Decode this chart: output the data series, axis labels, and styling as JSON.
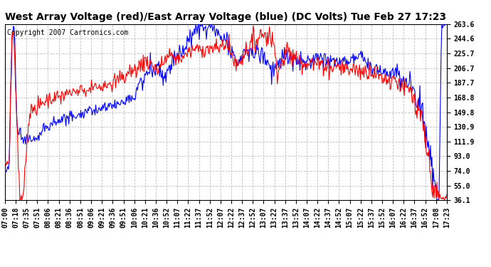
{
  "title": "West Array Voltage (red)/East Array Voltage (blue) (DC Volts) Tue Feb 27 17:23",
  "copyright_text": "Copyright 2007 Cartronics.com",
  "yticks": [
    36.1,
    55.0,
    74.0,
    93.0,
    111.9,
    130.9,
    149.8,
    168.8,
    187.7,
    206.7,
    225.7,
    244.6,
    263.6
  ],
  "xtick_labels": [
    "07:00",
    "07:18",
    "07:35",
    "07:51",
    "08:06",
    "08:21",
    "08:36",
    "08:51",
    "09:06",
    "09:21",
    "09:36",
    "09:51",
    "10:06",
    "10:21",
    "10:36",
    "10:52",
    "11:07",
    "11:22",
    "11:37",
    "11:52",
    "12:07",
    "12:22",
    "12:37",
    "12:52",
    "13:07",
    "13:22",
    "13:37",
    "13:52",
    "14:07",
    "14:22",
    "14:37",
    "14:52",
    "15:07",
    "15:22",
    "15:37",
    "15:52",
    "16:07",
    "16:22",
    "16:37",
    "16:52",
    "17:08",
    "17:23"
  ],
  "ymin": 36.1,
  "ymax": 263.6,
  "red_color": "#FF0000",
  "blue_color": "#0000FF",
  "bg_color": "#FFFFFF",
  "plot_bg_color": "#FFFFFF",
  "grid_color": "#C0C0C0",
  "grid_style": "--",
  "title_fontsize": 10,
  "copyright_fontsize": 7,
  "tick_fontsize": 7,
  "line_width": 0.8
}
